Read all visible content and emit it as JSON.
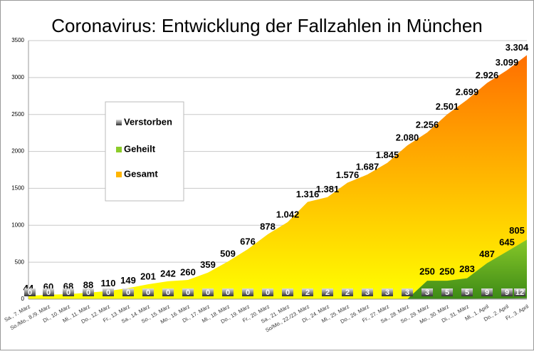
{
  "chart_data": {
    "type": "area",
    "title": "Coronavirus: Entwicklung der Fallzahlen in München",
    "categories": [
      "Sa., 7. März",
      "So./Mo., 8./9. März",
      "Di., 10. März",
      "Mi., 11. März",
      "Do., 12. März",
      "Fr., 13. März",
      "Sa., 14. März",
      "So., 15. März",
      "Mo., 16. März",
      "Di., 17. März",
      "Mi., 18. März",
      "Do., 19. März",
      "Fr., 20. März",
      "Sa., 21. März",
      "So/Mo., 22./23. März",
      "Di., 24. März",
      "Mi., 25. März",
      "Do., 26. März",
      "Fr., 27. März",
      "Sa., 28. März",
      "So., 29. März",
      "Mo., 30. März",
      "Di., 31. März",
      "Mi., 1. April",
      "Do., 2. April",
      "Fr., 3. April"
    ],
    "series": [
      {
        "name": "Verstorben",
        "colors": [
          "#e0e0e0",
          "#303030"
        ],
        "values": [
          0,
          0,
          0,
          0,
          0,
          0,
          0,
          0,
          0,
          0,
          0,
          0,
          0,
          0,
          2,
          2,
          2,
          3,
          3,
          3,
          3,
          5,
          5,
          9,
          9,
          12
        ]
      },
      {
        "name": "Geheilt",
        "colors": [
          "#3d8a16",
          "#8ccc2a"
        ],
        "values": [
          0,
          0,
          0,
          0,
          0,
          0,
          0,
          0,
          0,
          0,
          0,
          0,
          0,
          0,
          0,
          0,
          0,
          0,
          0,
          0,
          250,
          250,
          283,
          487,
          645,
          805
        ]
      },
      {
        "name": "Gesamt",
        "colors": [
          "#ffff00",
          "#ff6600"
        ],
        "values": [
          44,
          60,
          68,
          88,
          110,
          149,
          201,
          242,
          260,
          359,
          509,
          676,
          878,
          1042,
          1316,
          1381,
          1576,
          1687,
          1845,
          2080,
          2256,
          2501,
          2699,
          2926,
          3099,
          3304
        ],
        "value_labels": [
          "44",
          "60",
          "68",
          "88",
          "110",
          "149",
          "201",
          "242",
          "260",
          "359",
          "509",
          "676",
          "878",
          "1.042",
          "1.316",
          "1.381",
          "1.576",
          "1.687",
          "1.845",
          "2.080",
          "2.256",
          "2.501",
          "2.699",
          "2.926",
          "3.099",
          "3.304"
        ]
      }
    ],
    "ylim": [
      0,
      3500
    ],
    "yticks": [
      0,
      500,
      1000,
      1500,
      2000,
      2500,
      3000,
      3500
    ],
    "grid": true
  }
}
